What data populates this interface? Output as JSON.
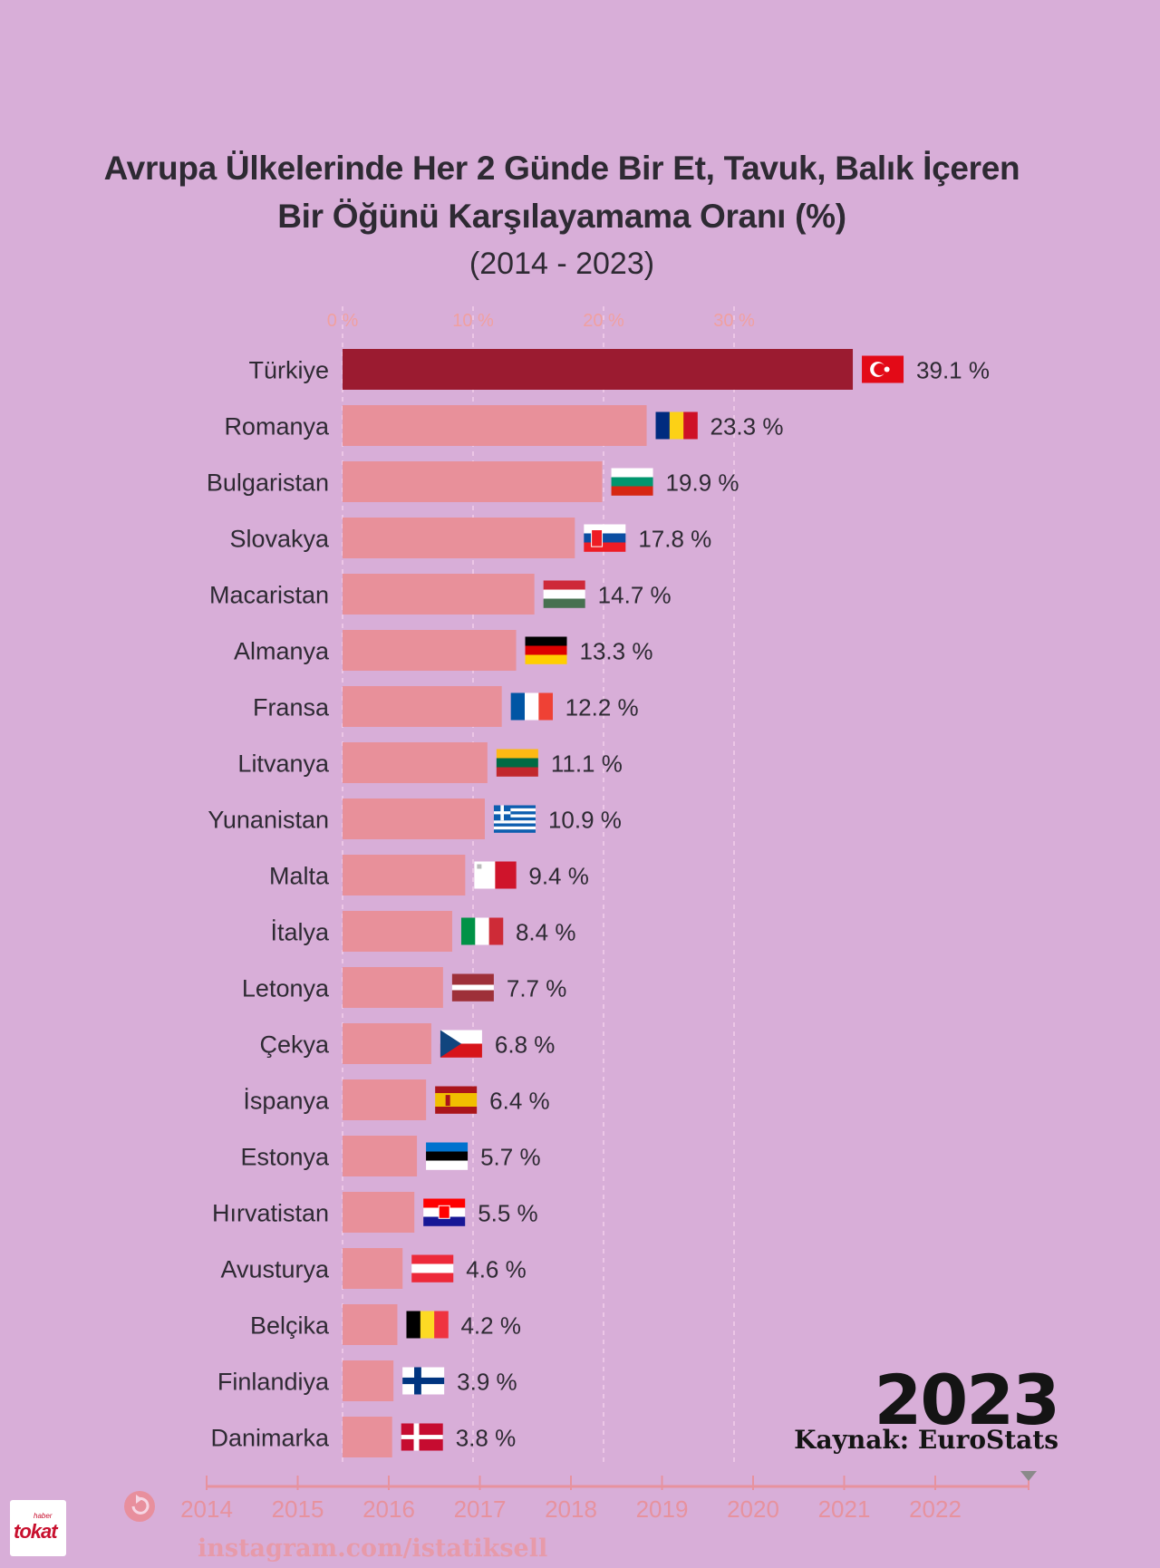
{
  "title": {
    "line1": "Avrupa Ülkelerinde Her 2 Günde Bir Et, Tavuk, Balık İçeren",
    "line2": "Bir Öğünü Karşılayamama Oranı (%)",
    "period": "(2014 - 2023)"
  },
  "chart_data": {
    "type": "bar",
    "orientation": "horizontal",
    "categories": [
      "Türkiye",
      "Romanya",
      "Bulgaristan",
      "Slovakya",
      "Macaristan",
      "Almanya",
      "Fransa",
      "Litvanya",
      "Yunanistan",
      "Malta",
      "İtalya",
      "Letonya",
      "Çekya",
      "İspanya",
      "Estonya",
      "Hırvatistan",
      "Avusturya",
      "Belçika",
      "Finlandiya",
      "Danimarka"
    ],
    "values": [
      39.1,
      23.3,
      19.9,
      17.8,
      14.7,
      13.3,
      12.2,
      11.1,
      10.9,
      9.4,
      8.4,
      7.7,
      6.8,
      6.4,
      5.7,
      5.5,
      4.6,
      4.2,
      3.9,
      3.8
    ],
    "value_labels": [
      "39.1 %",
      "23.3 %",
      "19.9 %",
      "17.8 %",
      "14.7 %",
      "13.3 %",
      "12.2 %",
      "11.1 %",
      "10.9 %",
      "9.4 %",
      "8.4 %",
      "7.7 %",
      "6.8 %",
      "6.4 %",
      "5.7 %",
      "5.5 %",
      "4.6 %",
      "4.2 %",
      "3.9 %",
      "3.8 %"
    ],
    "flags": [
      "turkey-flag",
      "romania-flag",
      "bulgaria-flag",
      "slovakia-flag",
      "hungary-flag",
      "germany-flag",
      "france-flag",
      "lithuania-flag",
      "greece-flag",
      "malta-flag",
      "italy-flag",
      "latvia-flag",
      "czechia-flag",
      "spain-flag",
      "estonia-flag",
      "croatia-flag",
      "austria-flag",
      "belgium-flag",
      "finland-flag",
      "denmark-flag"
    ],
    "x_ticks": [
      0,
      10,
      20,
      30
    ],
    "x_tick_labels": [
      "0 %",
      "10 %",
      "20 %",
      "30 %"
    ],
    "xlim": [
      0,
      40
    ],
    "highlight_category": "Türkiye",
    "colors": {
      "highlight": "#9b1b30",
      "bar": "#e8909a",
      "gridline": "#ecc6e6",
      "tick_label": "#f0a0a0"
    },
    "grid": true
  },
  "timeline": {
    "years": [
      "2014",
      "2015",
      "2016",
      "2017",
      "2018",
      "2019",
      "2020",
      "2021",
      "2022"
    ],
    "current": "2023",
    "color": "#e7929e"
  },
  "year_display": "2023",
  "source": "Kaynak: EuroStats",
  "watermark": "instagram.com/istatiksell",
  "logo": {
    "main": "tokat",
    "small": "haber"
  }
}
